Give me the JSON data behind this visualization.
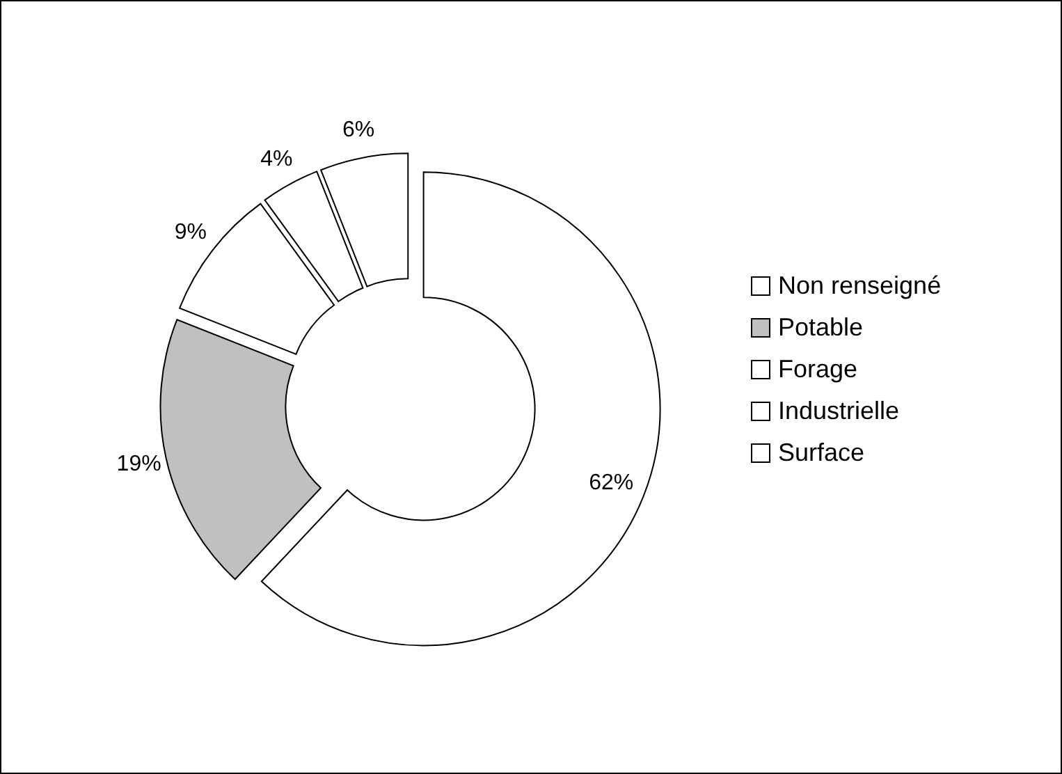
{
  "chart_data": {
    "type": "donut",
    "categories": [
      "Non renseigné",
      "Potable",
      "Forage",
      "Industrielle",
      "Surface"
    ],
    "values": [
      62,
      19,
      9,
      4,
      6
    ],
    "colors": [
      "#ffffff",
      "#c0c0c0",
      "#ffffff",
      "#ffffff",
      "#ffffff"
    ],
    "value_labels": [
      "62%",
      "19%",
      "9%",
      "4%",
      "6%"
    ],
    "legend": "right"
  }
}
